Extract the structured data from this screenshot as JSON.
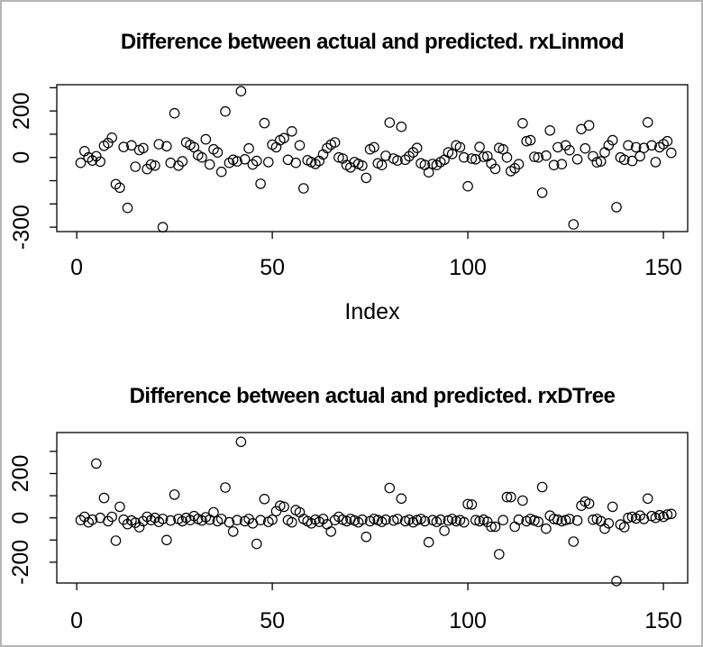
{
  "window": {
    "background_color": "#ffffff",
    "border_color": "#b5b5b5"
  },
  "chart_data": [
    {
      "type": "scatter",
      "title": "Difference between actual and predicted. rxLinmod",
      "xlabel": "Index",
      "ylabel": "",
      "marker": "open-circle",
      "marker_color": "#000000",
      "background": "#ffffff",
      "grid": false,
      "legend": "none",
      "n_points": 152,
      "x_mode": "index",
      "x_start": 1,
      "xlim": [
        -5.1,
        156.2
      ],
      "ylim": [
        -319,
        313
      ],
      "x_ticks": [
        0,
        50,
        100,
        150
      ],
      "x_tick_labels": [
        "0",
        "50",
        "100",
        "150"
      ],
      "y_ticks": [
        300,
        200,
        100,
        0,
        -100,
        -200,
        -300
      ],
      "y_tick_labels": [
        "200",
        "0",
        "-300"
      ],
      "y": [
        -23,
        27,
        0,
        -13,
        5,
        -18,
        50,
        62,
        85,
        -115,
        -130,
        45,
        -217,
        52,
        -40,
        32,
        40,
        -50,
        -30,
        -35,
        57,
        -300,
        48,
        -23,
        190,
        -35,
        -17,
        65,
        54,
        44,
        10,
        0,
        78,
        -30,
        35,
        22,
        -62,
        198,
        -23,
        -10,
        -17,
        285,
        -8,
        39,
        -30,
        -15,
        -113,
        148,
        -20,
        55,
        44,
        74,
        83,
        -10,
        112,
        -23,
        52,
        -133,
        -12,
        -20,
        -28,
        -15,
        13,
        40,
        55,
        65,
        0,
        -5,
        -33,
        -43,
        -20,
        -28,
        -35,
        -88,
        35,
        44,
        -25,
        -33,
        7,
        150,
        -5,
        -13,
        132,
        -10,
        5,
        22,
        41,
        -25,
        -32,
        -64,
        -28,
        -33,
        -20,
        -10,
        22,
        15,
        52,
        44,
        0,
        -124,
        -5,
        -8,
        45,
        3,
        5,
        -26,
        -49,
        41,
        35,
        0,
        -59,
        -47,
        -29,
        147,
        70,
        74,
        3,
        0,
        -152,
        8,
        116,
        -33,
        44,
        -29,
        52,
        31,
        -288,
        -8,
        122,
        39,
        138,
        5,
        -21,
        -17,
        22,
        52,
        74,
        -214,
        0,
        -10,
        52,
        -15,
        44,
        5,
        41,
        151,
        52,
        -20,
        44,
        57,
        70,
        20
      ]
    },
    {
      "type": "scatter",
      "title": "Difference between actual and predicted. rxDTree",
      "xlabel": "",
      "ylabel": "",
      "marker": "open-circle",
      "marker_color": "#000000",
      "background": "#ffffff",
      "grid": false,
      "legend": "none",
      "n_points": 152,
      "x_mode": "index",
      "x_start": 1,
      "xlim": [
        -5.1,
        156.2
      ],
      "ylim": [
        -294,
        385
      ],
      "x_ticks": [
        0,
        50,
        100,
        150
      ],
      "x_tick_labels": [
        "0",
        "50",
        "100",
        "150"
      ],
      "y_ticks": [
        300,
        200,
        100,
        0,
        -100,
        -200
      ],
      "y_tick_labels": [
        "200",
        "0",
        "-200"
      ],
      "y": [
        -10,
        5,
        -20,
        -8,
        245,
        0,
        90,
        -15,
        5,
        -103,
        50,
        -8,
        -28,
        -12,
        -22,
        -42,
        -15,
        5,
        -10,
        0,
        -18,
        -5,
        -100,
        -12,
        105,
        -5,
        -15,
        0,
        -10,
        8,
        -5,
        -12,
        3,
        -8,
        25,
        -15,
        -5,
        137,
        -20,
        -62,
        -10,
        343,
        -15,
        -5,
        -25,
        -117,
        -10,
        85,
        -18,
        -8,
        30,
        55,
        50,
        -10,
        -20,
        35,
        25,
        -5,
        -15,
        -25,
        -8,
        -18,
        -5,
        -29,
        -62,
        -10,
        5,
        -8,
        -15,
        -5,
        -12,
        -20,
        -8,
        -86,
        -15,
        -5,
        -10,
        -18,
        -8,
        135,
        -12,
        -5,
        87,
        -15,
        -8,
        -20,
        -10,
        -5,
        -15,
        -110,
        -10,
        -18,
        -8,
        -58,
        -12,
        -5,
        -15,
        -10,
        -20,
        62,
        60,
        -10,
        -15,
        -8,
        -18,
        -40,
        -40,
        -164,
        -10,
        94,
        94,
        -40,
        -8,
        78,
        -15,
        -5,
        -12,
        -18,
        139,
        -49,
        10,
        -5,
        -8,
        -15,
        -10,
        -5,
        -107,
        -12,
        55,
        73,
        64,
        -8,
        -5,
        -15,
        -49,
        -25,
        50,
        -285,
        -30,
        -42,
        0,
        5,
        -3,
        10,
        -5,
        87,
        8,
        0,
        12,
        5,
        15,
        18
      ]
    }
  ]
}
